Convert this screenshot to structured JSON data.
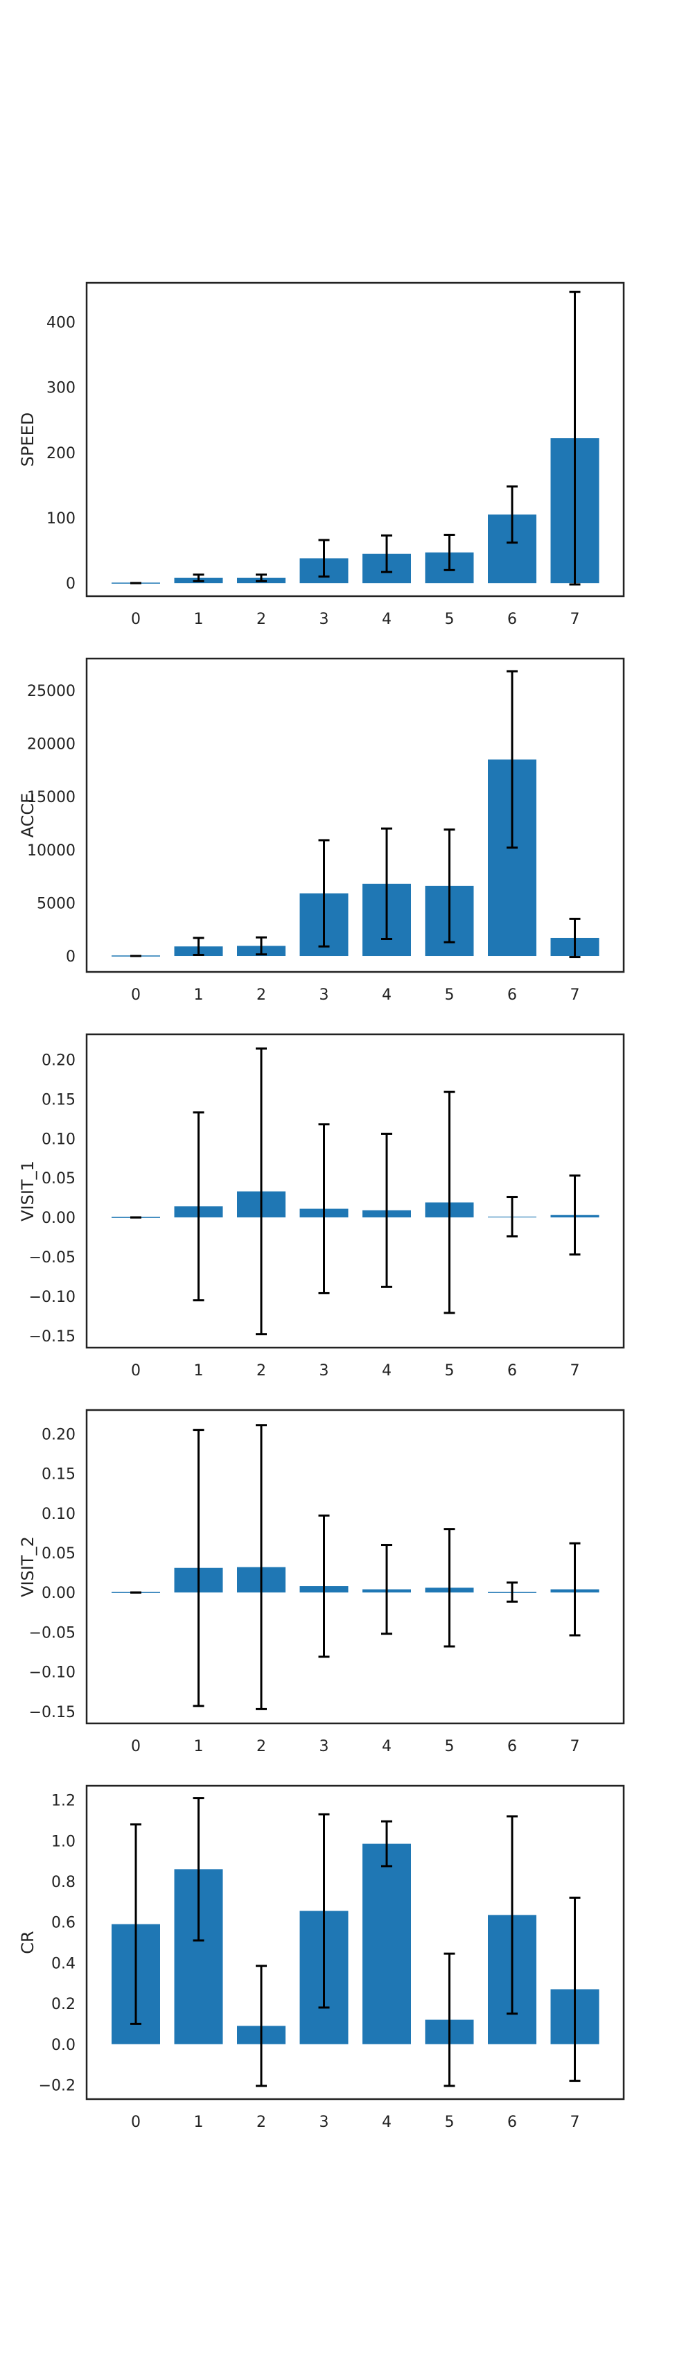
{
  "colors": {
    "bar": "#1f77b4",
    "errorbar": "#000000",
    "frame": "#222222",
    "background": "#ffffff"
  },
  "chart_data": [
    {
      "type": "bar",
      "ylabel": "SPEED",
      "categories": [
        "0",
        "1",
        "2",
        "3",
        "4",
        "5",
        "6",
        "7"
      ],
      "values": [
        0,
        8,
        8,
        38,
        45,
        47,
        105,
        222
      ],
      "errors": [
        0,
        5,
        5,
        28,
        28,
        27,
        43,
        224
      ],
      "ylim": [
        -20,
        460
      ],
      "yticks": [
        0,
        100,
        200,
        300,
        400
      ],
      "ytick_labels": [
        "0",
        "100",
        "200",
        "300",
        "400"
      ],
      "grid": false
    },
    {
      "type": "bar",
      "ylabel": "ACCE",
      "categories": [
        "0",
        "1",
        "2",
        "3",
        "4",
        "5",
        "6",
        "7"
      ],
      "values": [
        0,
        900,
        950,
        5900,
        6800,
        6600,
        18500,
        1700
      ],
      "errors": [
        0,
        800,
        800,
        5000,
        5200,
        5300,
        8300,
        1800
      ],
      "ylim": [
        -1500,
        28000
      ],
      "yticks": [
        0,
        5000,
        10000,
        15000,
        20000,
        25000
      ],
      "ytick_labels": [
        "0",
        "5000",
        "10000",
        "15000",
        "20000",
        "25000"
      ],
      "grid": false
    },
    {
      "type": "bar",
      "ylabel": "VISIT_1",
      "categories": [
        "0",
        "1",
        "2",
        "3",
        "4",
        "5",
        "6",
        "7"
      ],
      "values": [
        0,
        0.014,
        0.033,
        0.011,
        0.009,
        0.019,
        0.001,
        0.003
      ],
      "errors": [
        0,
        0.119,
        0.181,
        0.107,
        0.097,
        0.14,
        0.025,
        0.05
      ],
      "ylim": [
        -0.165,
        0.232
      ],
      "yticks": [
        -0.15,
        -0.1,
        -0.05,
        0.0,
        0.05,
        0.1,
        0.15,
        0.2
      ],
      "ytick_labels": [
        "−0.15",
        "−0.10",
        "−0.05",
        "0.00",
        "0.05",
        "0.10",
        "0.15",
        "0.20"
      ],
      "grid": false
    },
    {
      "type": "bar",
      "ylabel": "VISIT_2",
      "categories": [
        "0",
        "1",
        "2",
        "3",
        "4",
        "5",
        "6",
        "7"
      ],
      "values": [
        0,
        0.031,
        0.032,
        0.008,
        0.004,
        0.006,
        0.0005,
        0.004
      ],
      "errors": [
        0,
        0.174,
        0.179,
        0.089,
        0.056,
        0.074,
        0.012,
        0.058
      ],
      "ylim": [
        -0.165,
        0.23
      ],
      "yticks": [
        -0.15,
        -0.1,
        -0.05,
        0.0,
        0.05,
        0.1,
        0.15,
        0.2
      ],
      "ytick_labels": [
        "−0.15",
        "−0.10",
        "−0.05",
        "0.00",
        "0.05",
        "0.10",
        "0.15",
        "0.20"
      ],
      "grid": false
    },
    {
      "type": "bar",
      "ylabel": "CR",
      "categories": [
        "0",
        "1",
        "2",
        "3",
        "4",
        "5",
        "6",
        "7"
      ],
      "values": [
        0.59,
        0.86,
        0.09,
        0.655,
        0.985,
        0.12,
        0.635,
        0.27
      ],
      "errors": [
        0.49,
        0.35,
        0.295,
        0.475,
        0.11,
        0.325,
        0.485,
        0.45
      ],
      "ylim": [
        -0.27,
        1.27
      ],
      "yticks": [
        -0.2,
        0.0,
        0.2,
        0.4,
        0.6,
        0.8,
        1.0,
        1.2
      ],
      "ytick_labels": [
        "−0.2",
        "0.0",
        "0.2",
        "0.4",
        "0.6",
        "0.8",
        "1.0",
        "1.2"
      ],
      "grid": false
    }
  ]
}
